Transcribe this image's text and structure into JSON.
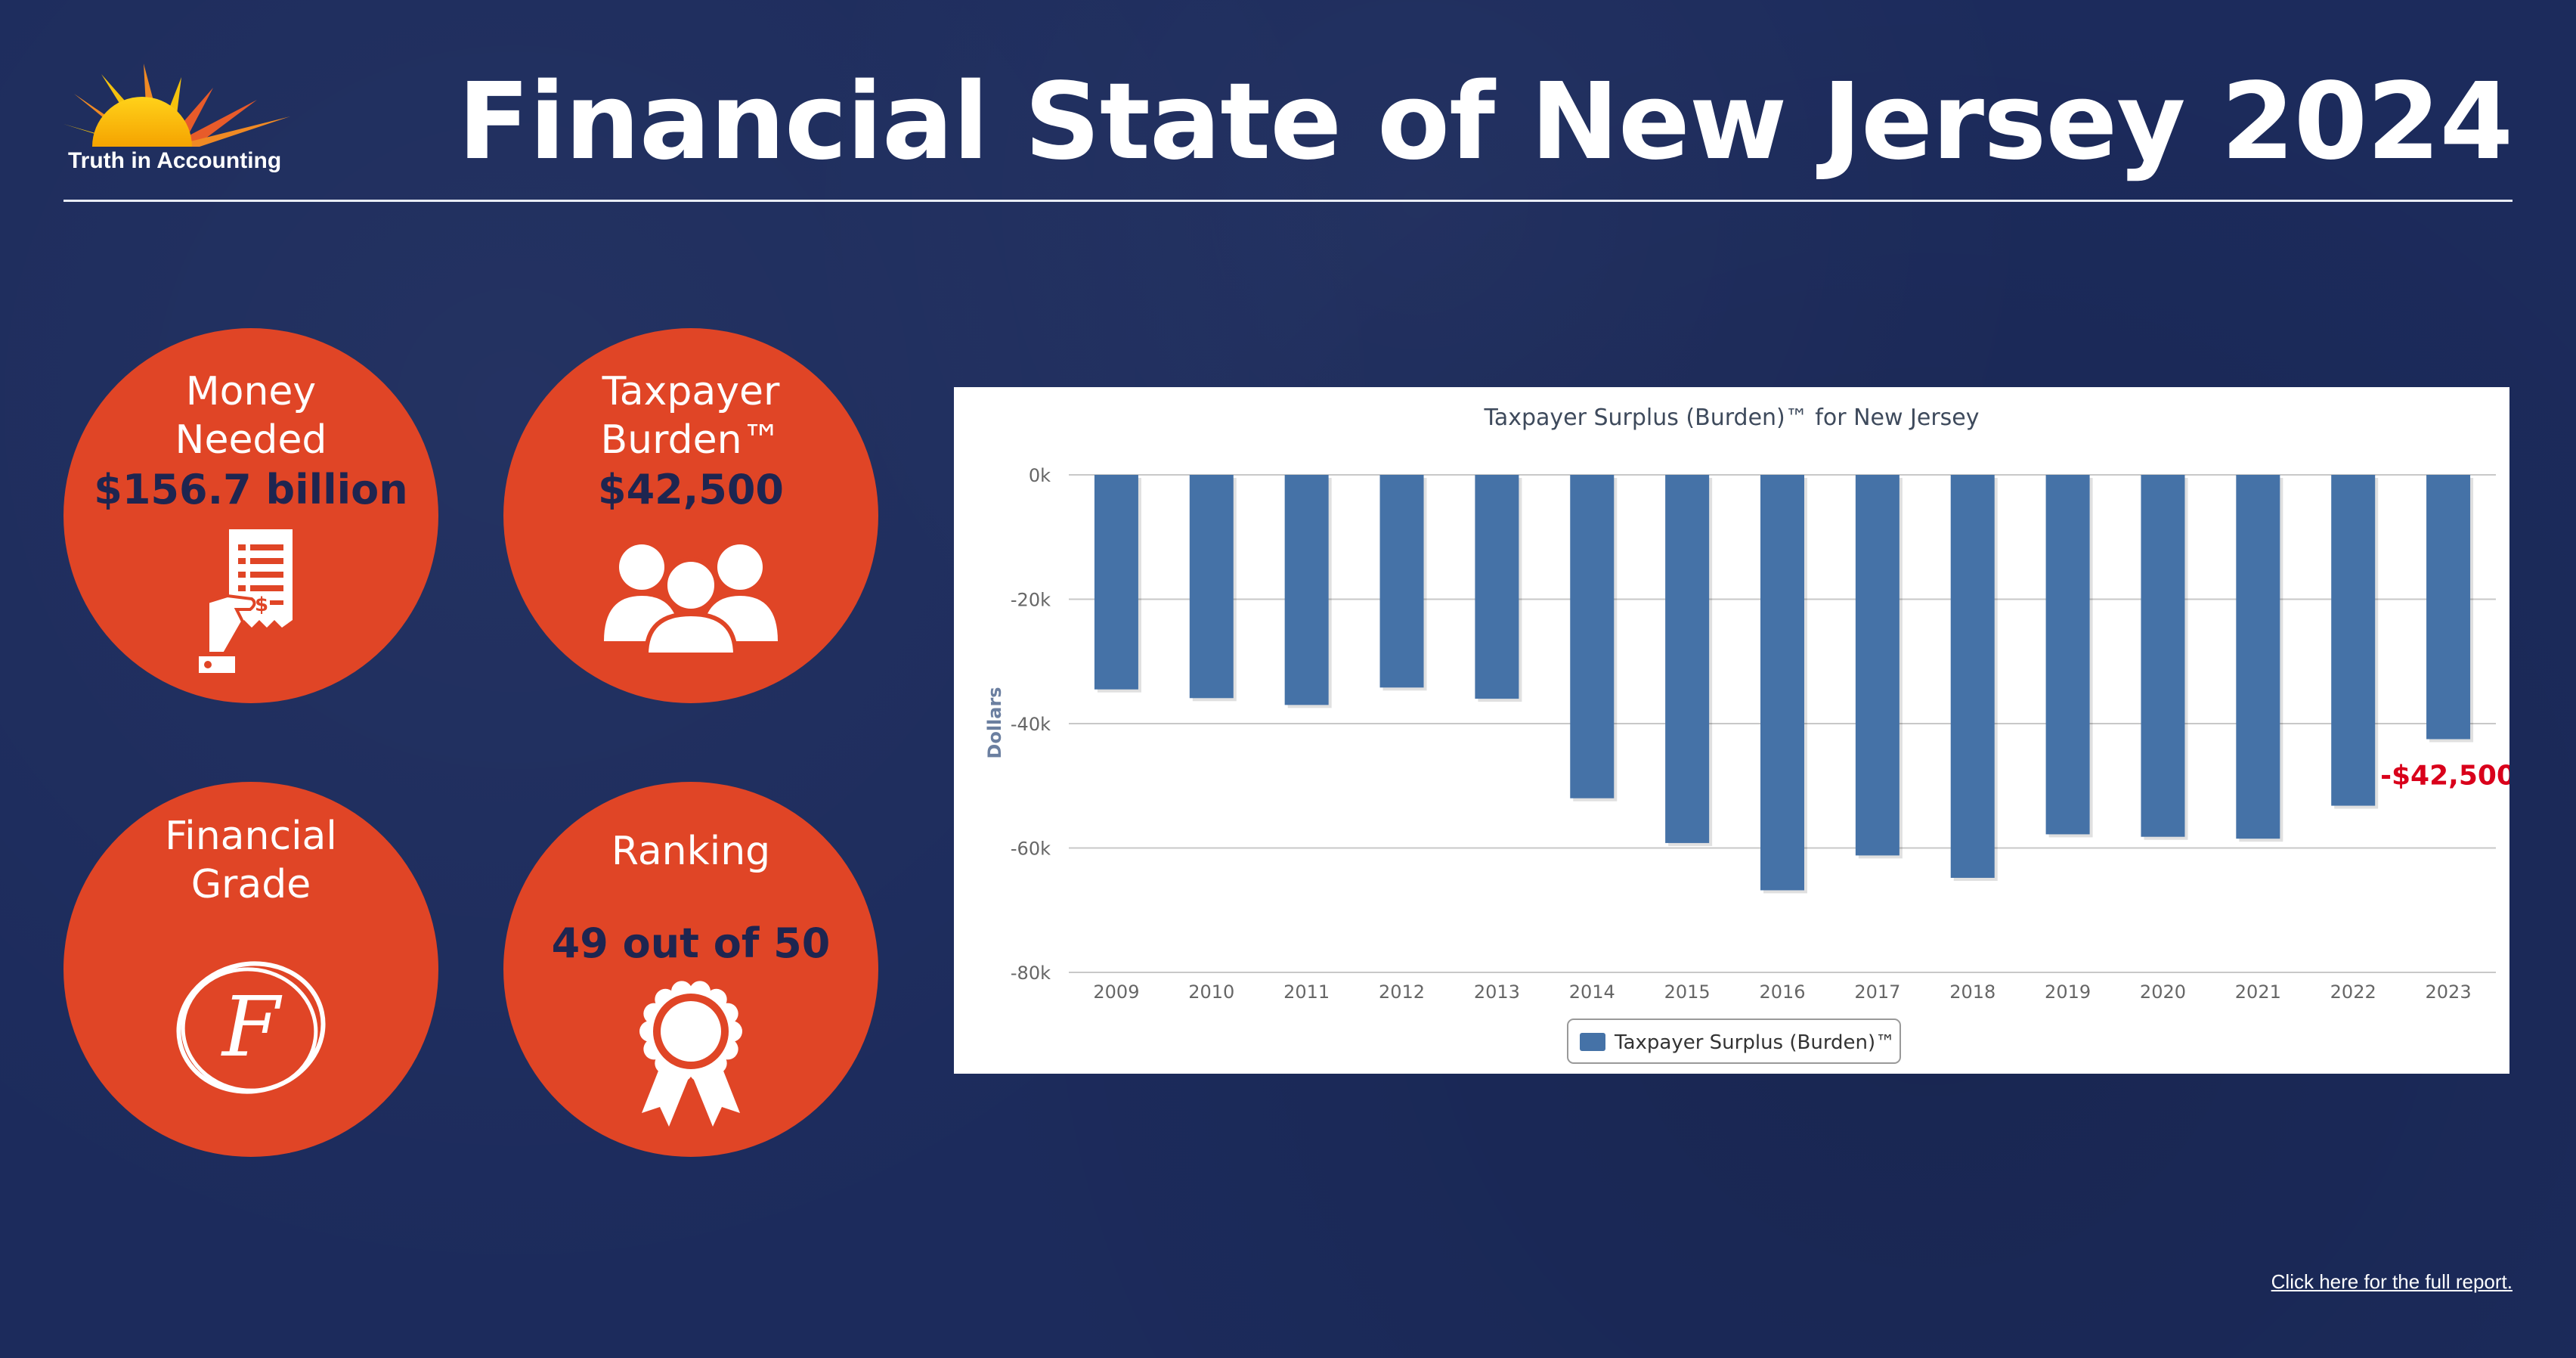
{
  "header": {
    "logo_text": "Truth in Accounting",
    "title": "Financial State of New Jersey 2024"
  },
  "cards": {
    "money_needed": {
      "label_line1": "Money",
      "label_line2": "Needed",
      "value": "$156.7 billion",
      "icon": "receipt-hand-icon"
    },
    "taxpayer_burden": {
      "label_line1": "Taxpayer",
      "label_line2": "Burden™",
      "value": "$42,500",
      "icon": "people-group-icon"
    },
    "financial_grade": {
      "label_line1": "Financial",
      "label_line2": "Grade",
      "value": "F",
      "icon": "circled-grade-icon"
    },
    "ranking": {
      "label": "Ranking",
      "value": "49 out of 50",
      "icon": "award-ribbon-icon"
    }
  },
  "colors": {
    "background": "#1c2b5c",
    "circle": "#e04526",
    "bar": "#4572a7",
    "callout": "#d9001b"
  },
  "chart_data": {
    "type": "bar",
    "title": "Taxpayer Surplus (Burden)™ for New Jersey",
    "ylabel": "Dollars",
    "xlabel": "",
    "categories": [
      "2009",
      "2010",
      "2011",
      "2012",
      "2013",
      "2014",
      "2015",
      "2016",
      "2017",
      "2018",
      "2019",
      "2020",
      "2021",
      "2022",
      "2023"
    ],
    "series": [
      {
        "name": "Taxpayer Surplus (Burden)™",
        "values": [
          -34500,
          -35900,
          -37000,
          -34200,
          -36000,
          -52000,
          -59200,
          -66800,
          -61200,
          -64800,
          -57800,
          -58200,
          -58500,
          -53200,
          -42500
        ]
      }
    ],
    "ylim": [
      -80000,
      0
    ],
    "yticks": [
      0,
      -20000,
      -40000,
      -60000,
      -80000
    ],
    "ytick_labels": [
      "0k",
      "-20k",
      "-40k",
      "-60k",
      "-80k"
    ],
    "grid": true,
    "legend_placement": "bottom-center",
    "annotation": "-$42,500"
  },
  "footer": {
    "link_text": "Click here for the full report."
  }
}
